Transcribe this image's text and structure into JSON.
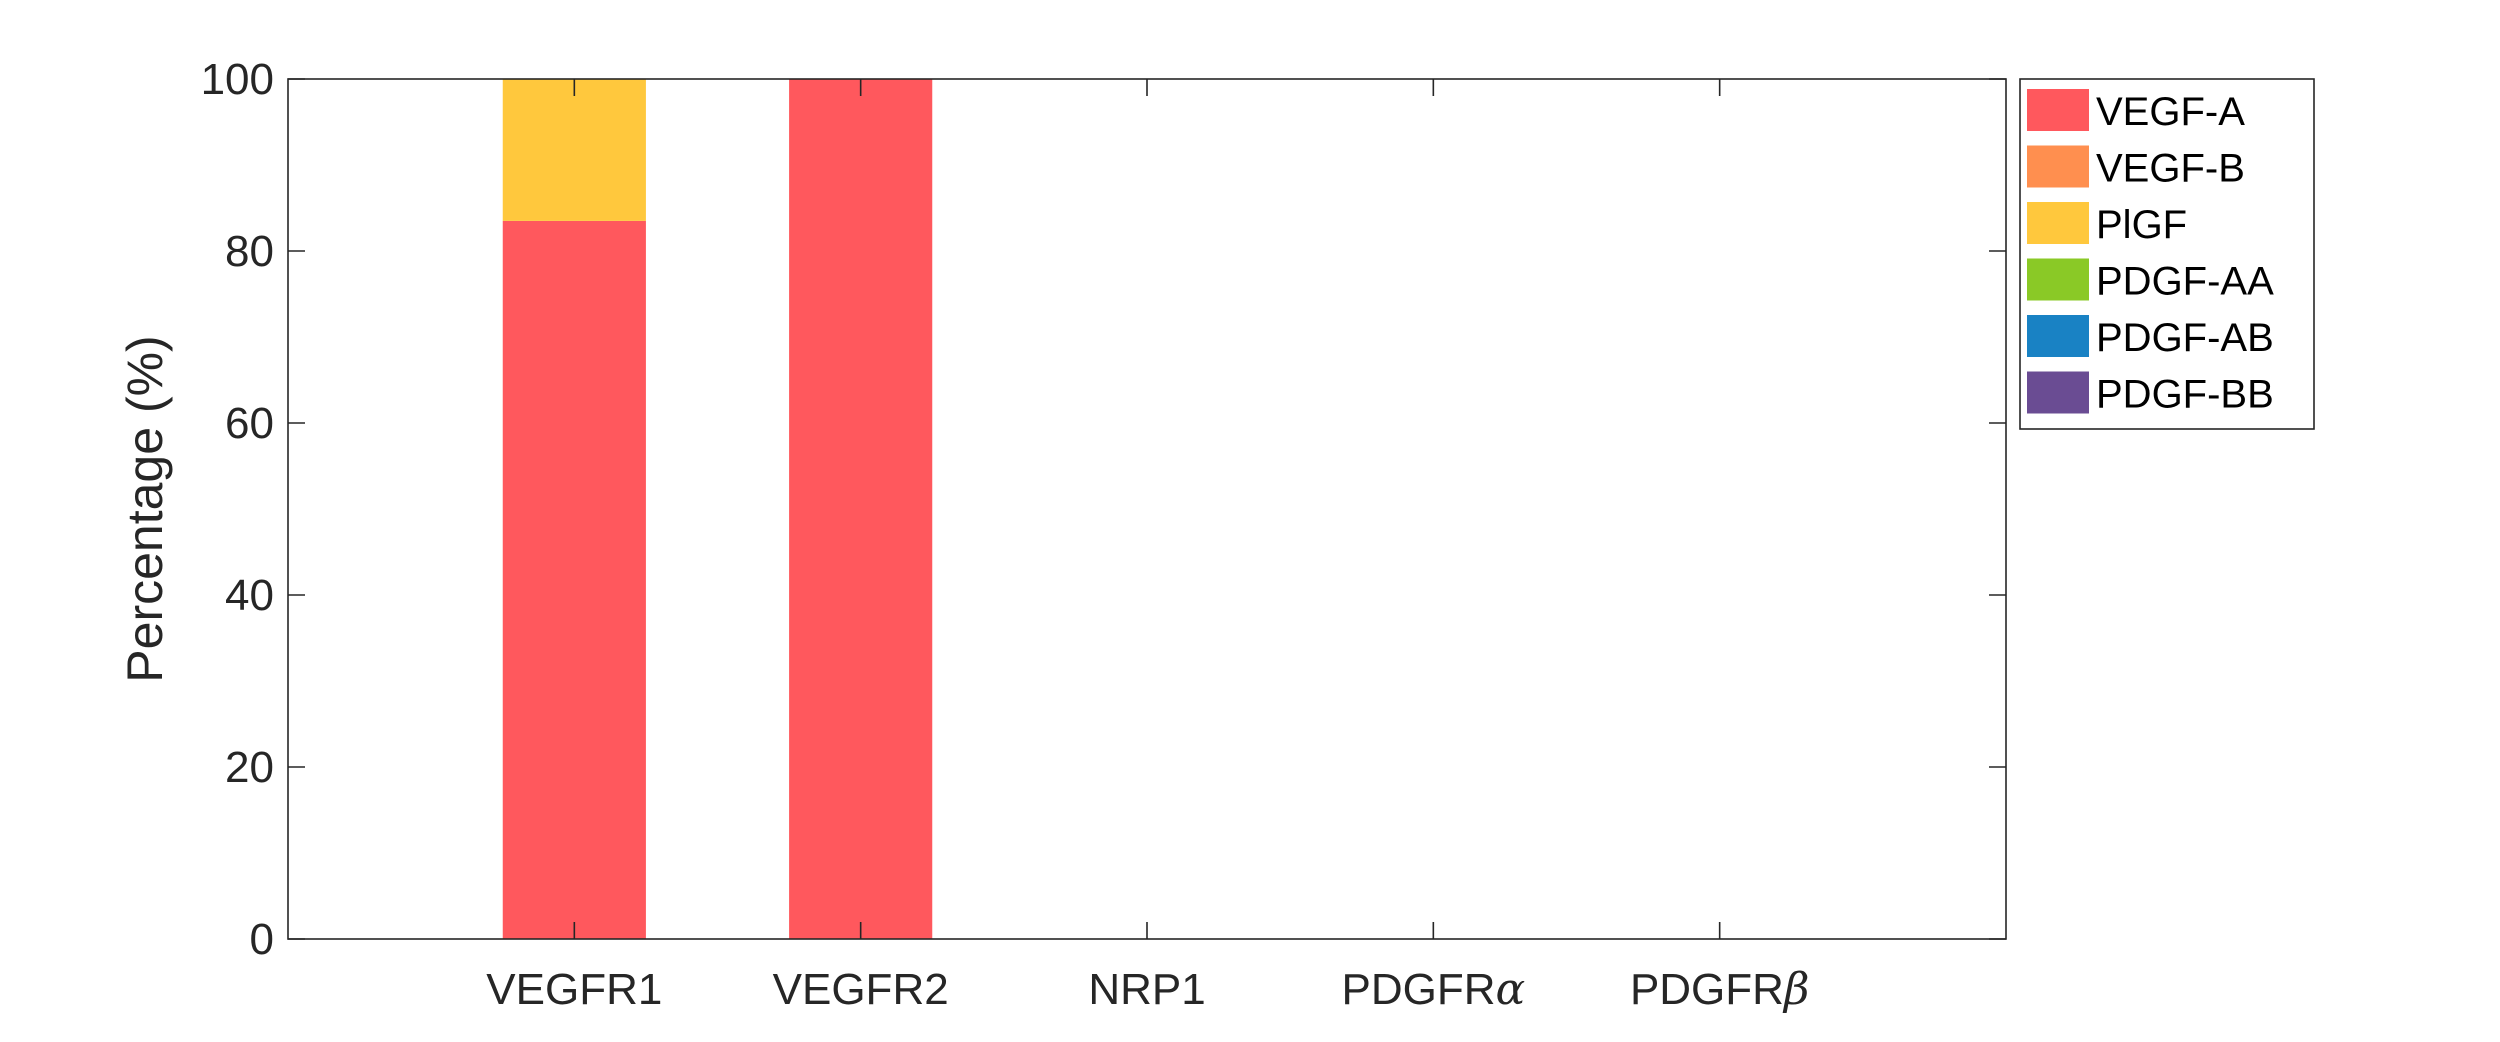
{
  "chart_data": {
    "type": "bar",
    "stacked": true,
    "categories": [
      "VEGFR1",
      "VEGFR2",
      "NRP1",
      "PDGFRα",
      "PDGFRβ"
    ],
    "series": [
      {
        "name": "VEGF-A",
        "color": "#FF585D",
        "values": [
          83.5,
          100,
          0,
          0,
          0
        ]
      },
      {
        "name": "VEGF-B",
        "color": "#FF8F4F",
        "values": [
          0,
          0,
          0,
          0,
          0
        ]
      },
      {
        "name": "PlGF",
        "color": "#FFC83D",
        "values": [
          16.5,
          0,
          0,
          0,
          0
        ]
      },
      {
        "name": "PDGF-AA",
        "color": "#8AC926",
        "values": [
          0,
          0,
          0,
          0,
          0
        ]
      },
      {
        "name": "PDGF-AB",
        "color": "#1982C4",
        "values": [
          0,
          0,
          0,
          0,
          0
        ]
      },
      {
        "name": "PDGF-BB",
        "color": "#6A4C93",
        "values": [
          0,
          0,
          0,
          0,
          0
        ]
      }
    ],
    "yticks": [
      0,
      20,
      40,
      60,
      80,
      100
    ],
    "ylim": [
      0,
      100
    ],
    "ylabel": "Percentage (%)",
    "xlabel": "",
    "title": "",
    "grid": false,
    "legend": "outside-top-right"
  }
}
